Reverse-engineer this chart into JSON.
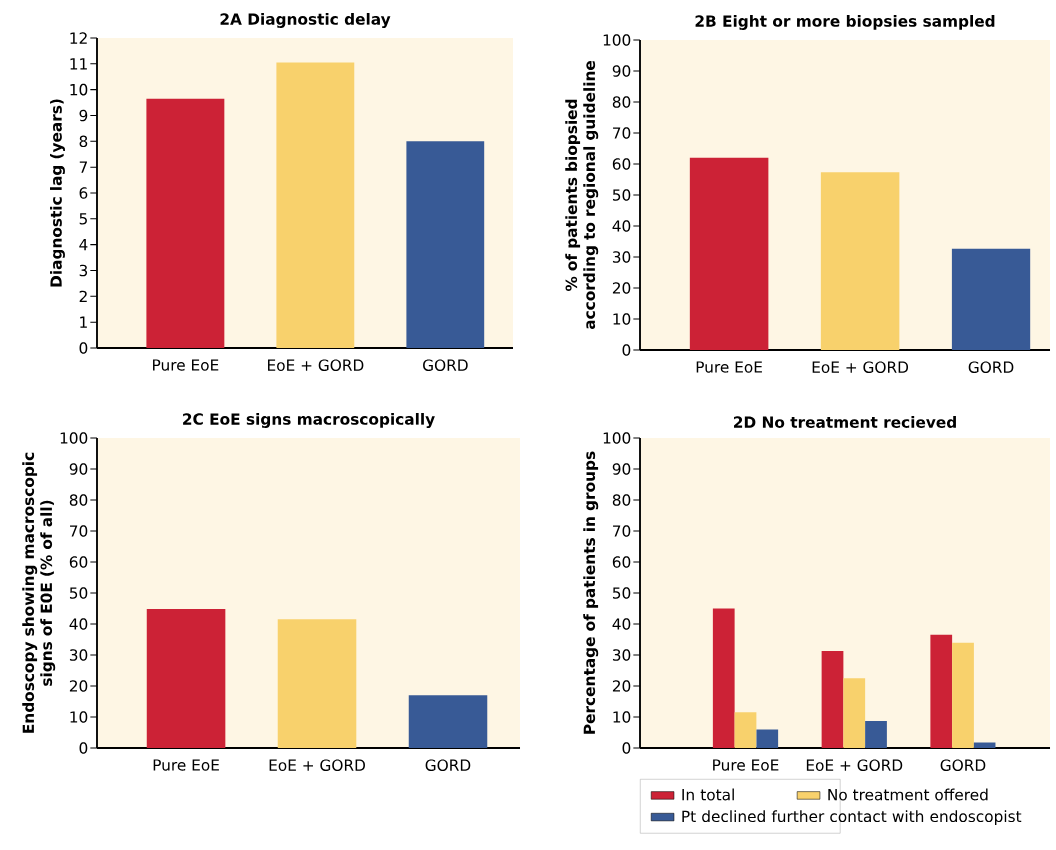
{
  "chart_data": [
    {
      "type": "bar",
      "title": "2A Diagnostic delay",
      "ylabel": "Diagnostic lag (years)",
      "categories": [
        "Pure EoE",
        "EoE + GORD",
        "GORD"
      ],
      "values": [
        9.65,
        11.05,
        8.0
      ],
      "colors": [
        "#cc2236",
        "#f8d16c",
        "#385a96"
      ],
      "ylim": [
        0,
        12
      ],
      "yticks": [
        0,
        1,
        2,
        3,
        4,
        5,
        6,
        7,
        8,
        9,
        10,
        11,
        12
      ]
    },
    {
      "type": "bar",
      "title": "2B Eight or more biopsies sampled",
      "ylabel": "% of patients biopsied according to regional guideline",
      "categories": [
        "Pure EoE",
        "EoE + GORD",
        "GORD"
      ],
      "values": [
        62,
        57.3,
        32.7
      ],
      "colors": [
        "#cc2236",
        "#f8d16c",
        "#385a96"
      ],
      "ylim": [
        0,
        100
      ],
      "yticks": [
        0,
        10,
        20,
        30,
        40,
        50,
        60,
        70,
        80,
        90,
        100
      ]
    },
    {
      "type": "bar",
      "title": "2C EoE signs macroscopically",
      "ylabel": "Endoscopy showing macroscopic signs of E0E (% of all)",
      "categories": [
        "Pure EoE",
        "EoE + GORD",
        "GORD"
      ],
      "values": [
        44.8,
        41.5,
        17
      ],
      "colors": [
        "#cc2236",
        "#f8d16c",
        "#385a96"
      ],
      "ylim": [
        0,
        100
      ],
      "yticks": [
        0,
        10,
        20,
        30,
        40,
        50,
        60,
        70,
        80,
        90,
        100
      ]
    },
    {
      "type": "bar",
      "title": "2D No treatment recieved",
      "ylabel": "Percentage of patients in groups",
      "categories": [
        "Pure EoE",
        "EoE + GORD",
        "GORD"
      ],
      "legend": "bottom",
      "ylim": [
        0,
        100
      ],
      "yticks": [
        0,
        10,
        20,
        30,
        40,
        50,
        60,
        70,
        80,
        90,
        100
      ],
      "series": [
        {
          "name": "In total",
          "color": "#cc2236",
          "values": [
            45,
            31.3,
            36.5
          ]
        },
        {
          "name": "No treatment offered",
          "color": "#f8d16c",
          "values": [
            11.5,
            22.5,
            34
          ]
        },
        {
          "name": "Pt declined further contact with endoscopist",
          "color": "#385a96",
          "values": [
            6,
            8.7,
            1.8
          ]
        }
      ]
    }
  ]
}
